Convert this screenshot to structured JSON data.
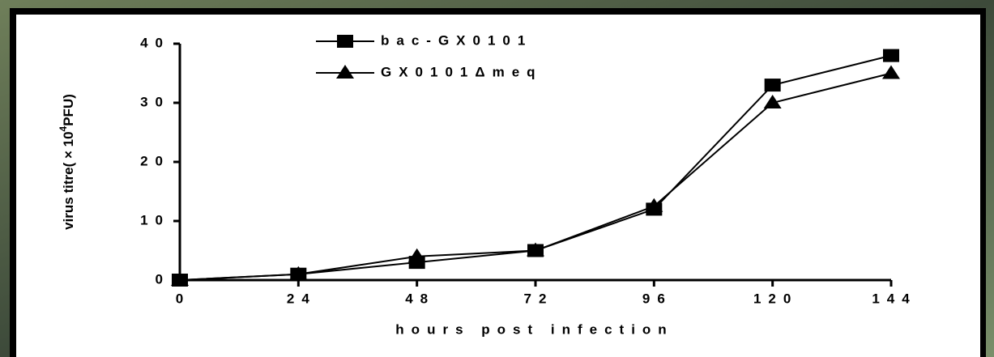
{
  "chart_data": {
    "type": "line",
    "x_label": "hours post infection",
    "y_label": {
      "text": "virus titre( × 10",
      "superscript": "4",
      "suffix": "PFU)"
    },
    "x": [
      0,
      24,
      48,
      72,
      96,
      120,
      144
    ],
    "series": [
      {
        "name": "bac-GX0101",
        "color": "#000000",
        "marker": "square",
        "values": [
          0,
          1,
          3,
          5,
          12,
          33,
          38
        ]
      },
      {
        "name": "GX0101Δmeq",
        "color": "#000000",
        "marker": "triangle",
        "values": [
          0,
          1,
          4,
          5,
          12.5,
          30,
          35
        ]
      }
    ],
    "xlim": [
      0,
      144
    ],
    "xticks": [
      0,
      24,
      48,
      72,
      96,
      120,
      144
    ],
    "ylim": [
      0,
      40
    ],
    "yticks": [
      0,
      10,
      20,
      30,
      40
    ],
    "grid": false
  }
}
